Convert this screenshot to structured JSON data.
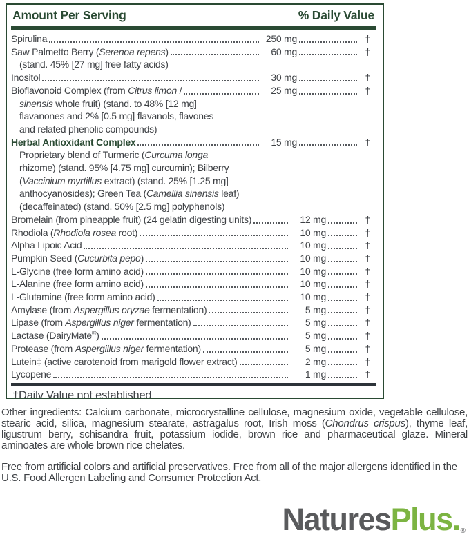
{
  "panel": {
    "header": {
      "left": "Amount Per Serving",
      "right": "% Daily Value"
    },
    "rows": [
      {
        "name": [
          {
            "t": "Spirulina"
          }
        ],
        "amount": "250 mg",
        "dv": "†",
        "gap": "wide"
      },
      {
        "name": [
          {
            "t": "Saw Palmetto Berry ("
          },
          {
            "t": "Serenoa repens",
            "i": true
          },
          {
            "t": ")"
          }
        ],
        "amount": "60 mg",
        "dv": "†",
        "gap": "wide",
        "sub": [
          [
            {
              "t": "(stand. 45% [27 mg] free fatty acids)"
            }
          ]
        ]
      },
      {
        "name": [
          {
            "t": "Inositol"
          }
        ],
        "amount": "30 mg",
        "dv": "†",
        "gap": "wide"
      },
      {
        "name": [
          {
            "t": "Bioflavonoid Complex (from "
          },
          {
            "t": "Citrus limon",
            "i": true
          },
          {
            "t": " /"
          }
        ],
        "amount": "25 mg",
        "dv": "†",
        "gap": "wide",
        "sub": [
          [
            {
              "t": "sinensis",
              "i": true
            },
            {
              "t": " whole fruit) (stand. to 48% [12 mg]"
            }
          ],
          [
            {
              "t": "flavanones and 2% [0.5 mg] flavanols, flavones"
            }
          ],
          [
            {
              "t": "and related phenolic compounds)"
            }
          ]
        ]
      },
      {
        "name": [
          {
            "t": "Herbal Antioxidant Complex"
          }
        ],
        "bold": true,
        "amount": "15 mg",
        "dv": "†",
        "gap": "wide",
        "sub": [
          [
            {
              "t": "Proprietary blend of Turmeric ("
            },
            {
              "t": "Curcuma longa",
              "i": true
            }
          ],
          [
            {
              "t": "rhizome) (stand. 95% [4.75 mg] curcumin); Bilberry"
            }
          ],
          [
            {
              "t": "("
            },
            {
              "t": "Vaccinium myrtillus",
              "i": true
            },
            {
              "t": " extract) (stand. 25% [1.25 mg]"
            }
          ],
          [
            {
              "t": "anthocyanosides); Green Tea ("
            },
            {
              "t": "Camellia sinensis",
              "i": true
            },
            {
              "t": " leaf)"
            }
          ],
          [
            {
              "t": "(decaffeinated) (stand. 50% [2.5 mg] polyphenols)"
            }
          ]
        ]
      },
      {
        "name": [
          {
            "t": "Bromelain (from pineapple fruit) (24 gelatin digesting units)"
          }
        ],
        "amount": "12 mg",
        "dv": "†",
        "gap": "narrow"
      },
      {
        "name": [
          {
            "t": "Rhodiola ("
          },
          {
            "t": "Rhodiola rosea",
            "i": true
          },
          {
            "t": " root)"
          }
        ],
        "amount": "10 mg",
        "dv": "†",
        "gap": "narrow"
      },
      {
        "name": [
          {
            "t": "Alpha Lipoic Acid"
          }
        ],
        "amount": "10 mg",
        "dv": "†",
        "gap": "narrow"
      },
      {
        "name": [
          {
            "t": "Pumpkin Seed ("
          },
          {
            "t": "Cucurbita pepo",
            "i": true
          },
          {
            "t": ")"
          }
        ],
        "amount": "10 mg",
        "dv": "†",
        "gap": "narrow"
      },
      {
        "name": [
          {
            "t": "L-Glycine (free form amino acid)"
          }
        ],
        "amount": "10 mg",
        "dv": "†",
        "gap": "narrow"
      },
      {
        "name": [
          {
            "t": "L-Alanine (free form amino acid)"
          }
        ],
        "amount": "10 mg",
        "dv": "†",
        "gap": "narrow"
      },
      {
        "name": [
          {
            "t": "L-Glutamine (free form amino acid)"
          }
        ],
        "amount": "10 mg",
        "dv": "†",
        "gap": "narrow"
      },
      {
        "name": [
          {
            "t": "Amylase (from "
          },
          {
            "t": "Aspergillus oryzae",
            "i": true
          },
          {
            "t": " fermentation)"
          }
        ],
        "amount": "5 mg",
        "dv": "†",
        "gap": "narrow"
      },
      {
        "name": [
          {
            "t": "Lipase (from "
          },
          {
            "t": "Aspergillus niger",
            "i": true
          },
          {
            "t": " fermentation)"
          }
        ],
        "amount": "5 mg",
        "dv": "†",
        "gap": "narrow"
      },
      {
        "name": [
          {
            "t": "Lactase (DairyMate"
          },
          {
            "t": "®",
            "sup": true
          },
          {
            "t": ")"
          }
        ],
        "amount": "5 mg",
        "dv": "†",
        "gap": "narrow"
      },
      {
        "name": [
          {
            "t": "Protease (from "
          },
          {
            "t": "Aspergillus niger",
            "i": true
          },
          {
            "t": " fermentation)"
          }
        ],
        "amount": "5 mg",
        "dv": "†",
        "gap": "narrow"
      },
      {
        "name": [
          {
            "t": "Lutein‡ (active carotenoid from marigold flower extract)"
          }
        ],
        "amount": "2 mg",
        "dv": "†",
        "gap": "narrow"
      },
      {
        "name": [
          {
            "t": "Lycopene"
          }
        ],
        "amount": "1 mg",
        "dv": "†",
        "gap": "narrow"
      }
    ],
    "footnote": "†Daily Value not established."
  },
  "paragraphs": {
    "other_ingredients": [
      {
        "t": "Other ingredients: Calcium carbonate, microcrystalline cellulose, magnesium oxide, vegetable cellulose, stearic acid, silica, magnesium stearate, astragalus root, Irish moss ("
      },
      {
        "t": "Chondrus crispus",
        "i": true
      },
      {
        "t": "), thyme leaf, ligustrum berry, schisandra fruit, potassium iodide, brown rice and pharmaceutical glaze. Mineral aminoates are whole brown rice chelates."
      }
    ],
    "free_from": [
      {
        "t": "Free from artificial colors and artificial preservatives. Free from all of the major allergens identified in the U.S. Food Allergen Labeling and Consumer Protection Act."
      }
    ]
  },
  "logo": {
    "gray": "Natures",
    "green": "Plus.",
    "registered": "®"
  },
  "colors": {
    "dark_green": "#2a4a33",
    "footnote_bar": "#2d3339",
    "body_text": "#3e4145",
    "logo_gray": "#595a5c",
    "logo_green": "#7cb442"
  }
}
